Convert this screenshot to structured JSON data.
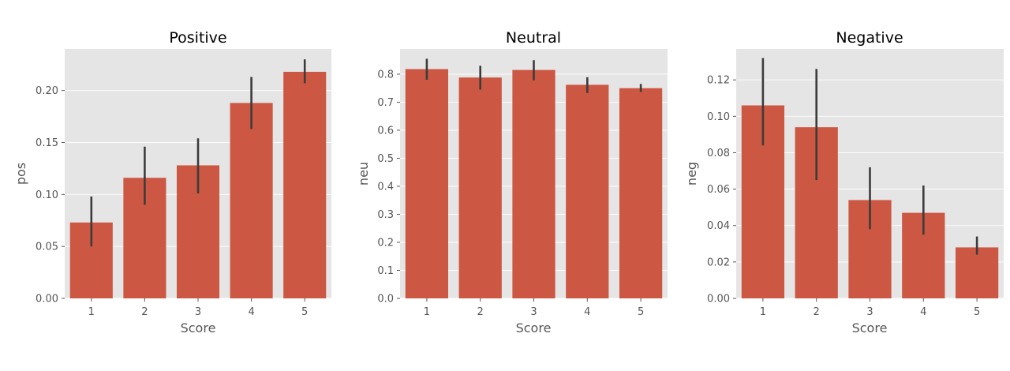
{
  "chart_data": [
    {
      "type": "bar",
      "title": "Positive",
      "xlabel": "Score",
      "ylabel": "pos",
      "categories": [
        "1",
        "2",
        "3",
        "4",
        "5"
      ],
      "values": [
        0.073,
        0.116,
        0.128,
        0.188,
        0.218
      ],
      "ci_low": [
        0.05,
        0.09,
        0.101,
        0.163,
        0.207
      ],
      "ci_high": [
        0.098,
        0.146,
        0.154,
        0.213,
        0.23
      ],
      "ylim": [
        0,
        0.24
      ],
      "yticks": [
        "0.00",
        "0.05",
        "0.10",
        "0.15",
        "0.20"
      ],
      "grid": true,
      "bar_color": "#cc5742",
      "error_color": "#3c3c3c"
    },
    {
      "type": "bar",
      "title": "Neutral",
      "xlabel": "Score",
      "ylabel": "neu",
      "categories": [
        "1",
        "2",
        "3",
        "4",
        "5"
      ],
      "values": [
        0.818,
        0.788,
        0.815,
        0.762,
        0.75
      ],
      "ci_low": [
        0.78,
        0.745,
        0.778,
        0.733,
        0.737
      ],
      "ci_high": [
        0.855,
        0.83,
        0.85,
        0.789,
        0.765
      ],
      "ylim": [
        0,
        0.89
      ],
      "yticks": [
        "0.0",
        "0.1",
        "0.2",
        "0.3",
        "0.4",
        "0.5",
        "0.6",
        "0.7",
        "0.8"
      ],
      "grid": true,
      "bar_color": "#cc5742",
      "error_color": "#3c3c3c"
    },
    {
      "type": "bar",
      "title": "Negative",
      "xlabel": "Score",
      "ylabel": "neg",
      "categories": [
        "1",
        "2",
        "3",
        "4",
        "5"
      ],
      "values": [
        0.106,
        0.094,
        0.054,
        0.047,
        0.028
      ],
      "ci_low": [
        0.084,
        0.065,
        0.038,
        0.035,
        0.024
      ],
      "ci_high": [
        0.132,
        0.126,
        0.072,
        0.062,
        0.034
      ],
      "ylim": [
        0,
        0.137
      ],
      "yticks": [
        "0.00",
        "0.02",
        "0.04",
        "0.06",
        "0.08",
        "0.10",
        "0.12"
      ],
      "grid": true,
      "bar_color": "#cc5742",
      "error_color": "#3c3c3c"
    }
  ]
}
